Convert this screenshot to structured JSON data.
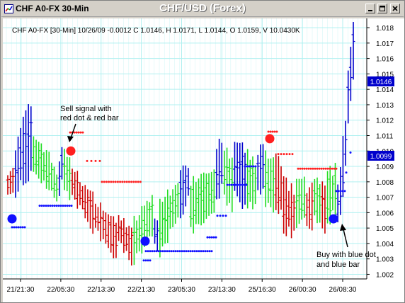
{
  "window": {
    "title": "CHF A0-FX 30-Min",
    "chart_title": "CHF/USD (Forex)"
  },
  "icons": {
    "system": "chart-window-icon",
    "minimize": "minimize-icon",
    "maximize": "maximize-icon",
    "close": "close-icon"
  },
  "colors": {
    "background": "#ffffff",
    "grid": "#b0f0f0",
    "up_bar": "#22dd22",
    "down_bar": "#cc0000",
    "blue_bar": "#0000cc",
    "sell_dot": "#ff2020",
    "buy_dot": "#1010ff",
    "price_label_bg": "#0000cc"
  },
  "chart_data": {
    "type": "ohlc",
    "info_line": "CHF A0-FX [30-Min] 10/26/09 -0.0012 C 1.0146, H 1.0171, L 1.0144, O 1.0159, V 10.0430K",
    "x_tick_labels": [
      "21/21:30",
      "22/05:30",
      "22/13:30",
      "22/21:30",
      "23/05:30",
      "23/13:30",
      "25/16:30",
      "26/00:30",
      "26/08:30"
    ],
    "y_tick_labels": [
      "1.018",
      "1.017",
      "1.016",
      "1.015",
      "1.014",
      "1.013",
      "1.012",
      "1.011",
      "1.010",
      "1.009",
      "1.008",
      "1.007",
      "1.006",
      "1.005",
      "1.004",
      "1.003",
      "1.002"
    ],
    "ylim": [
      1.0017,
      1.0186
    ],
    "grid": true,
    "price_labels": [
      "1.0146",
      "1.0099"
    ],
    "annotations": {
      "sell": "Sell signal with red dot & red bar",
      "buy": "Buy with blue dot and blue bar"
    },
    "segments": [
      {
        "n": 3,
        "kind": "d",
        "s": 1.0078,
        "e": 1.0081,
        "a": 0.0018,
        "low": 1.0048
      },
      {
        "n": 3,
        "kind": "b",
        "s": 1.0085,
        "e": 1.0098,
        "a": 0.003,
        "low": 1.0048
      },
      {
        "n": 4,
        "kind": "b",
        "s": 1.01,
        "e": 1.0108,
        "a": 0.004,
        "low": 1.0048
      },
      {
        "n": 6,
        "kind": "u",
        "s": 1.0098,
        "e": 1.0088,
        "a": 0.0025,
        "low": 1.0048
      },
      {
        "n": 4,
        "kind": "u",
        "s": 1.0087,
        "e": 1.0076,
        "a": 0.002,
        "low": 1.0055
      },
      {
        "n": 2,
        "kind": "b",
        "s": 1.0082,
        "e": 1.0092,
        "a": 0.0025,
        "low": 1.0055
      },
      {
        "n": 3,
        "kind": "u",
        "s": 1.0088,
        "e": 1.0082,
        "a": 0.0022,
        "low": 1.0055
      },
      {
        "n": 8,
        "kind": "d",
        "s": 1.008,
        "e": 1.0062,
        "a": 0.002,
        "low": 1.0055
      },
      {
        "n": 10,
        "kind": "d",
        "s": 1.006,
        "e": 1.0042,
        "a": 0.0022,
        "low": 1.0055
      },
      {
        "n": 6,
        "kind": "d",
        "s": 1.005,
        "e": 1.0038,
        "a": 0.002,
        "low": 1.0055
      },
      {
        "n": 8,
        "kind": "u",
        "s": 1.0042,
        "e": 1.0058,
        "a": 0.0025,
        "low": 1.0055
      },
      {
        "n": 2,
        "kind": "b",
        "s": 1.0048,
        "e": 1.0045,
        "a": 0.002,
        "low": 1.0036
      },
      {
        "n": 8,
        "kind": "u",
        "s": 1.005,
        "e": 1.0068,
        "a": 0.003,
        "low": 1.0036
      },
      {
        "n": 4,
        "kind": "b",
        "s": 1.0072,
        "e": 1.008,
        "a": 0.0025,
        "low": 1.0036
      },
      {
        "n": 10,
        "kind": "u",
        "s": 1.0064,
        "e": 1.0074,
        "a": 0.0035,
        "low": 1.0036
      },
      {
        "n": 3,
        "kind": "b",
        "s": 1.0085,
        "e": 1.0092,
        "a": 0.003,
        "low": 1.0036
      },
      {
        "n": 4,
        "kind": "u",
        "s": 1.0086,
        "e": 1.0078,
        "a": 0.003,
        "low": 1.0036
      },
      {
        "n": 5,
        "kind": "b",
        "s": 1.009,
        "e": 1.0082,
        "a": 0.0035,
        "low": 1.0036
      },
      {
        "n": 4,
        "kind": "u",
        "s": 1.0082,
        "e": 1.0078,
        "a": 0.003,
        "low": 1.0036
      },
      {
        "n": 3,
        "kind": "b",
        "s": 1.0086,
        "e": 1.009,
        "a": 0.003,
        "low": 1.0036
      },
      {
        "n": 4,
        "kind": "u",
        "s": 1.0082,
        "e": 1.0078,
        "a": 0.003,
        "low": 1.0036
      },
      {
        "n": 3,
        "kind": "d",
        "s": 1.008,
        "e": 1.0076,
        "a": 0.003,
        "low": 1.0036
      },
      {
        "n": 5,
        "kind": "d",
        "s": 1.0065,
        "e": 1.006,
        "a": 0.003,
        "low": 1.0036
      },
      {
        "n": 4,
        "kind": "u",
        "s": 1.0066,
        "e": 1.007,
        "a": 0.0025,
        "low": 1.0036
      },
      {
        "n": 3,
        "kind": "d",
        "s": 1.0062,
        "e": 1.0064,
        "a": 0.0025,
        "low": 1.0036
      },
      {
        "n": 3,
        "kind": "u",
        "s": 1.007,
        "e": 1.0066,
        "a": 0.0025,
        "low": 1.0036
      },
      {
        "n": 2,
        "kind": "d",
        "s": 1.0065,
        "e": 1.0062,
        "a": 0.0025,
        "low": 1.0036
      },
      {
        "n": 4,
        "kind": "u",
        "s": 1.007,
        "e": 1.0074,
        "a": 0.003,
        "low": 1.0036
      },
      {
        "n": 2,
        "kind": "b",
        "s": 1.0066,
        "e": 1.0074,
        "a": 0.003,
        "low": 1.0036
      },
      {
        "n": 2,
        "kind": "b",
        "s": 1.009,
        "e": 1.0105,
        "a": 0.004,
        "low": 1.0036
      },
      {
        "n": 3,
        "kind": "b",
        "s": 1.0135,
        "e": 1.0165,
        "a": 0.0035,
        "low": 1.0036
      }
    ]
  }
}
